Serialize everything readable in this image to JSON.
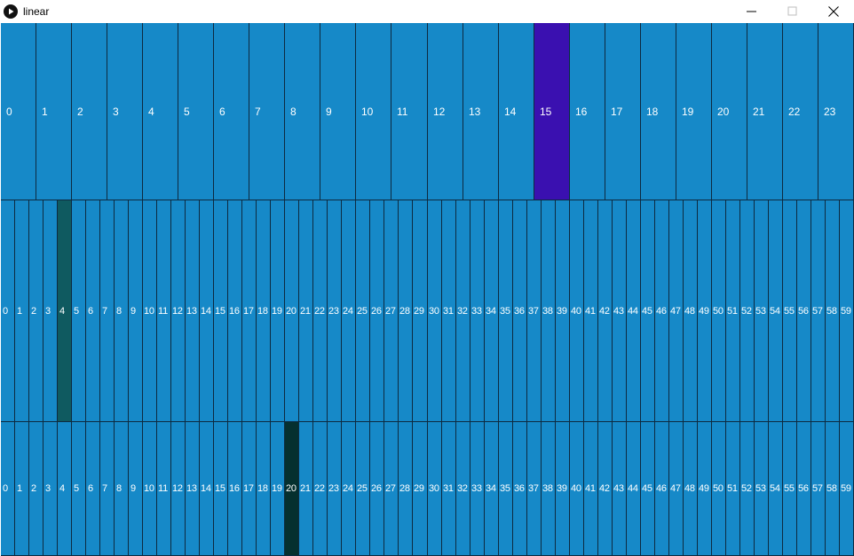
{
  "window": {
    "title": "linear",
    "icon": "play-icon",
    "buttons": {
      "minimize": "minimize-icon",
      "maximize": "maximize-icon",
      "close": "close-icon"
    }
  },
  "colors": {
    "cell": "#1689c8",
    "border": "#0d2a40",
    "highlight_top": "#3a10b0",
    "highlight_mid": "#0f5a60",
    "highlight_bot": "#05302f",
    "label": "#ffffff"
  },
  "rows": [
    {
      "id": "top",
      "cells": [
        "0",
        "1",
        "2",
        "3",
        "4",
        "5",
        "6",
        "7",
        "8",
        "9",
        "10",
        "11",
        "12",
        "13",
        "14",
        "15",
        "16",
        "17",
        "18",
        "19",
        "20",
        "21",
        "22",
        "23"
      ],
      "highlighted": 15,
      "highlight_color": "#3a10b0"
    },
    {
      "id": "mid",
      "cells": [
        "0",
        "1",
        "2",
        "3",
        "4",
        "5",
        "6",
        "7",
        "8",
        "9",
        "10",
        "11",
        "12",
        "13",
        "14",
        "15",
        "16",
        "17",
        "18",
        "19",
        "20",
        "21",
        "22",
        "23",
        "24",
        "25",
        "26",
        "27",
        "28",
        "29",
        "30",
        "31",
        "32",
        "33",
        "34",
        "35",
        "36",
        "37",
        "38",
        "39",
        "40",
        "41",
        "42",
        "43",
        "44",
        "45",
        "46",
        "47",
        "48",
        "49",
        "50",
        "51",
        "52",
        "53",
        "54",
        "55",
        "56",
        "57",
        "58",
        "59"
      ],
      "highlighted": 4,
      "highlight_color": "#0f5a60"
    },
    {
      "id": "bot",
      "cells": [
        "0",
        "1",
        "2",
        "3",
        "4",
        "5",
        "6",
        "7",
        "8",
        "9",
        "10",
        "11",
        "12",
        "13",
        "14",
        "15",
        "16",
        "17",
        "18",
        "19",
        "20",
        "21",
        "22",
        "23",
        "24",
        "25",
        "26",
        "27",
        "28",
        "29",
        "30",
        "31",
        "32",
        "33",
        "34",
        "35",
        "36",
        "37",
        "38",
        "39",
        "40",
        "41",
        "42",
        "43",
        "44",
        "45",
        "46",
        "47",
        "48",
        "49",
        "50",
        "51",
        "52",
        "53",
        "54",
        "55",
        "56",
        "57",
        "58",
        "59"
      ],
      "highlighted": 20,
      "highlight_color": "#05302f"
    }
  ]
}
